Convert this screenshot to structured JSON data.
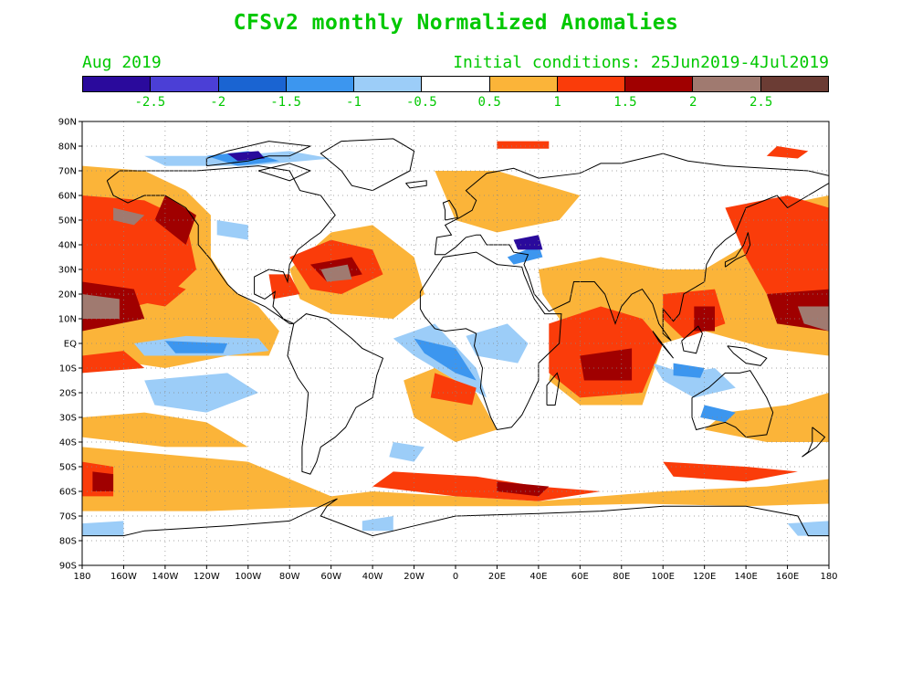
{
  "title": "CFSv2 monthly Normalized Anomalies",
  "subtitle_left": "Aug 2019",
  "subtitle_right": "Initial conditions: 25Jun2019-4Jul2019",
  "colorbar": {
    "colors": [
      "#2a0a9c",
      "#4b3fd6",
      "#1a64d2",
      "#3c96ef",
      "#9ccdf8",
      "#ffffff",
      "#fbb439",
      "#fa3c0a",
      "#a00000",
      "#a07a70",
      "#6b3c34"
    ],
    "labels": [
      "-2.5",
      "-2",
      "-1.5",
      "-1",
      "-0.5",
      "0.5",
      "1",
      "1.5",
      "2",
      "2.5"
    ]
  },
  "map": {
    "lat_labels": [
      "90N",
      "80N",
      "70N",
      "60N",
      "50N",
      "40N",
      "30N",
      "20N",
      "10N",
      "EQ",
      "10S",
      "20S",
      "30S",
      "40S",
      "50S",
      "60S",
      "70S",
      "80S",
      "90S"
    ],
    "lon_labels": [
      "180",
      "160W",
      "140W",
      "120W",
      "100W",
      "80W",
      "60W",
      "40W",
      "20W",
      "0",
      "20E",
      "40E",
      "60E",
      "80E",
      "100E",
      "120E",
      "140E",
      "160E",
      "180"
    ],
    "anomaly_colors": {
      "strong_negative": "#2a0a9c",
      "negative": "#3c96ef",
      "weak_negative": "#9ccdf8",
      "weak_positive": "#fbb439",
      "positive": "#fa3c0a",
      "strong_positive": "#a00000",
      "extreme_positive": "#a07a70"
    }
  }
}
